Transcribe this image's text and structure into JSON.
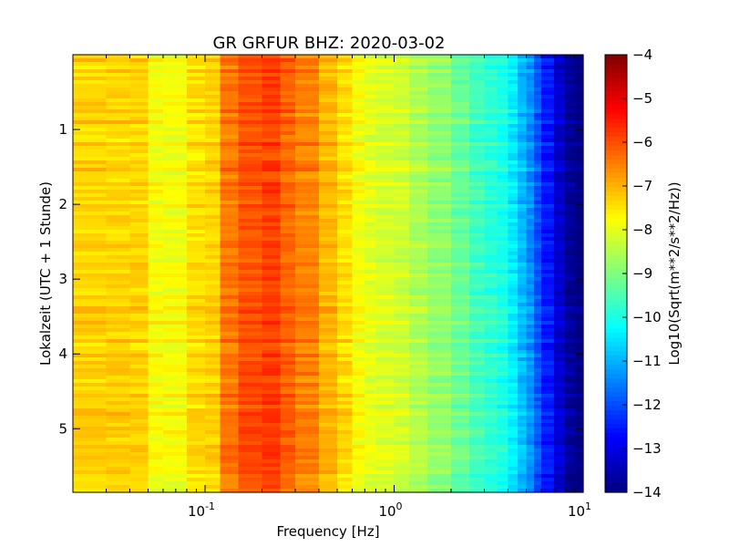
{
  "chart_data": {
    "type": "heatmap",
    "title": "GR GRFUR BHZ: 2020-03-02",
    "xlabel": "Frequency [Hz]",
    "ylabel": "Lokalzeit (UTC + 1 Stunde)",
    "x_scale": "log",
    "xlim": [
      0.02,
      10
    ],
    "x_ticks": [
      {
        "value": 0.1,
        "base": "10",
        "exp": "-1"
      },
      {
        "value": 1,
        "base": "10",
        "exp": "0"
      },
      {
        "value": 10,
        "base": "10",
        "exp": "1"
      }
    ],
    "ylim": [
      0,
      5.85
    ],
    "y_inverted": true,
    "y_ticks": [
      {
        "value": 1,
        "label": "1"
      },
      {
        "value": 2,
        "label": "2"
      },
      {
        "value": 3,
        "label": "3"
      },
      {
        "value": 4,
        "label": "4"
      },
      {
        "value": 5,
        "label": "5"
      }
    ],
    "colorbar": {
      "label": "Log10(Sqrt(m**2/s**2/Hz))",
      "range": [
        -14,
        -4
      ],
      "colormap": "jet",
      "ticks": [
        {
          "value": -4,
          "label": "−4"
        },
        {
          "value": -5,
          "label": "−5"
        },
        {
          "value": -6,
          "label": "−6"
        },
        {
          "value": -7,
          "label": "−7"
        },
        {
          "value": -8,
          "label": "−8"
        },
        {
          "value": -9,
          "label": "−9"
        },
        {
          "value": -10,
          "label": "−10"
        },
        {
          "value": -11,
          "label": "−11"
        },
        {
          "value": -12,
          "label": "−12"
        },
        {
          "value": -13,
          "label": "−13"
        },
        {
          "value": -14,
          "label": "−14"
        }
      ]
    },
    "frequency_bins_hz": [
      0.02,
      0.03,
      0.04,
      0.05,
      0.06,
      0.08,
      0.1,
      0.12,
      0.15,
      0.2,
      0.25,
      0.3,
      0.4,
      0.5,
      0.6,
      0.7,
      0.8,
      1.0,
      1.2,
      1.5,
      2.0,
      2.5,
      3.0,
      3.5,
      4.0,
      4.5,
      5.0,
      5.5,
      6.0,
      7.0,
      8.0,
      9.0,
      10.0
    ],
    "typical_psd_log10": [
      -7.3,
      -7.3,
      -7.3,
      -7.8,
      -7.8,
      -7.4,
      -7.3,
      -6.4,
      -6.0,
      -5.8,
      -6.2,
      -6.5,
      -7.0,
      -7.4,
      -7.8,
      -8.0,
      -8.1,
      -8.2,
      -8.5,
      -8.8,
      -9.2,
      -9.6,
      -9.8,
      -10.0,
      -10.4,
      -10.9,
      -11.3,
      -11.9,
      -12.5,
      -13.2,
      -13.7,
      -14.0
    ]
  }
}
